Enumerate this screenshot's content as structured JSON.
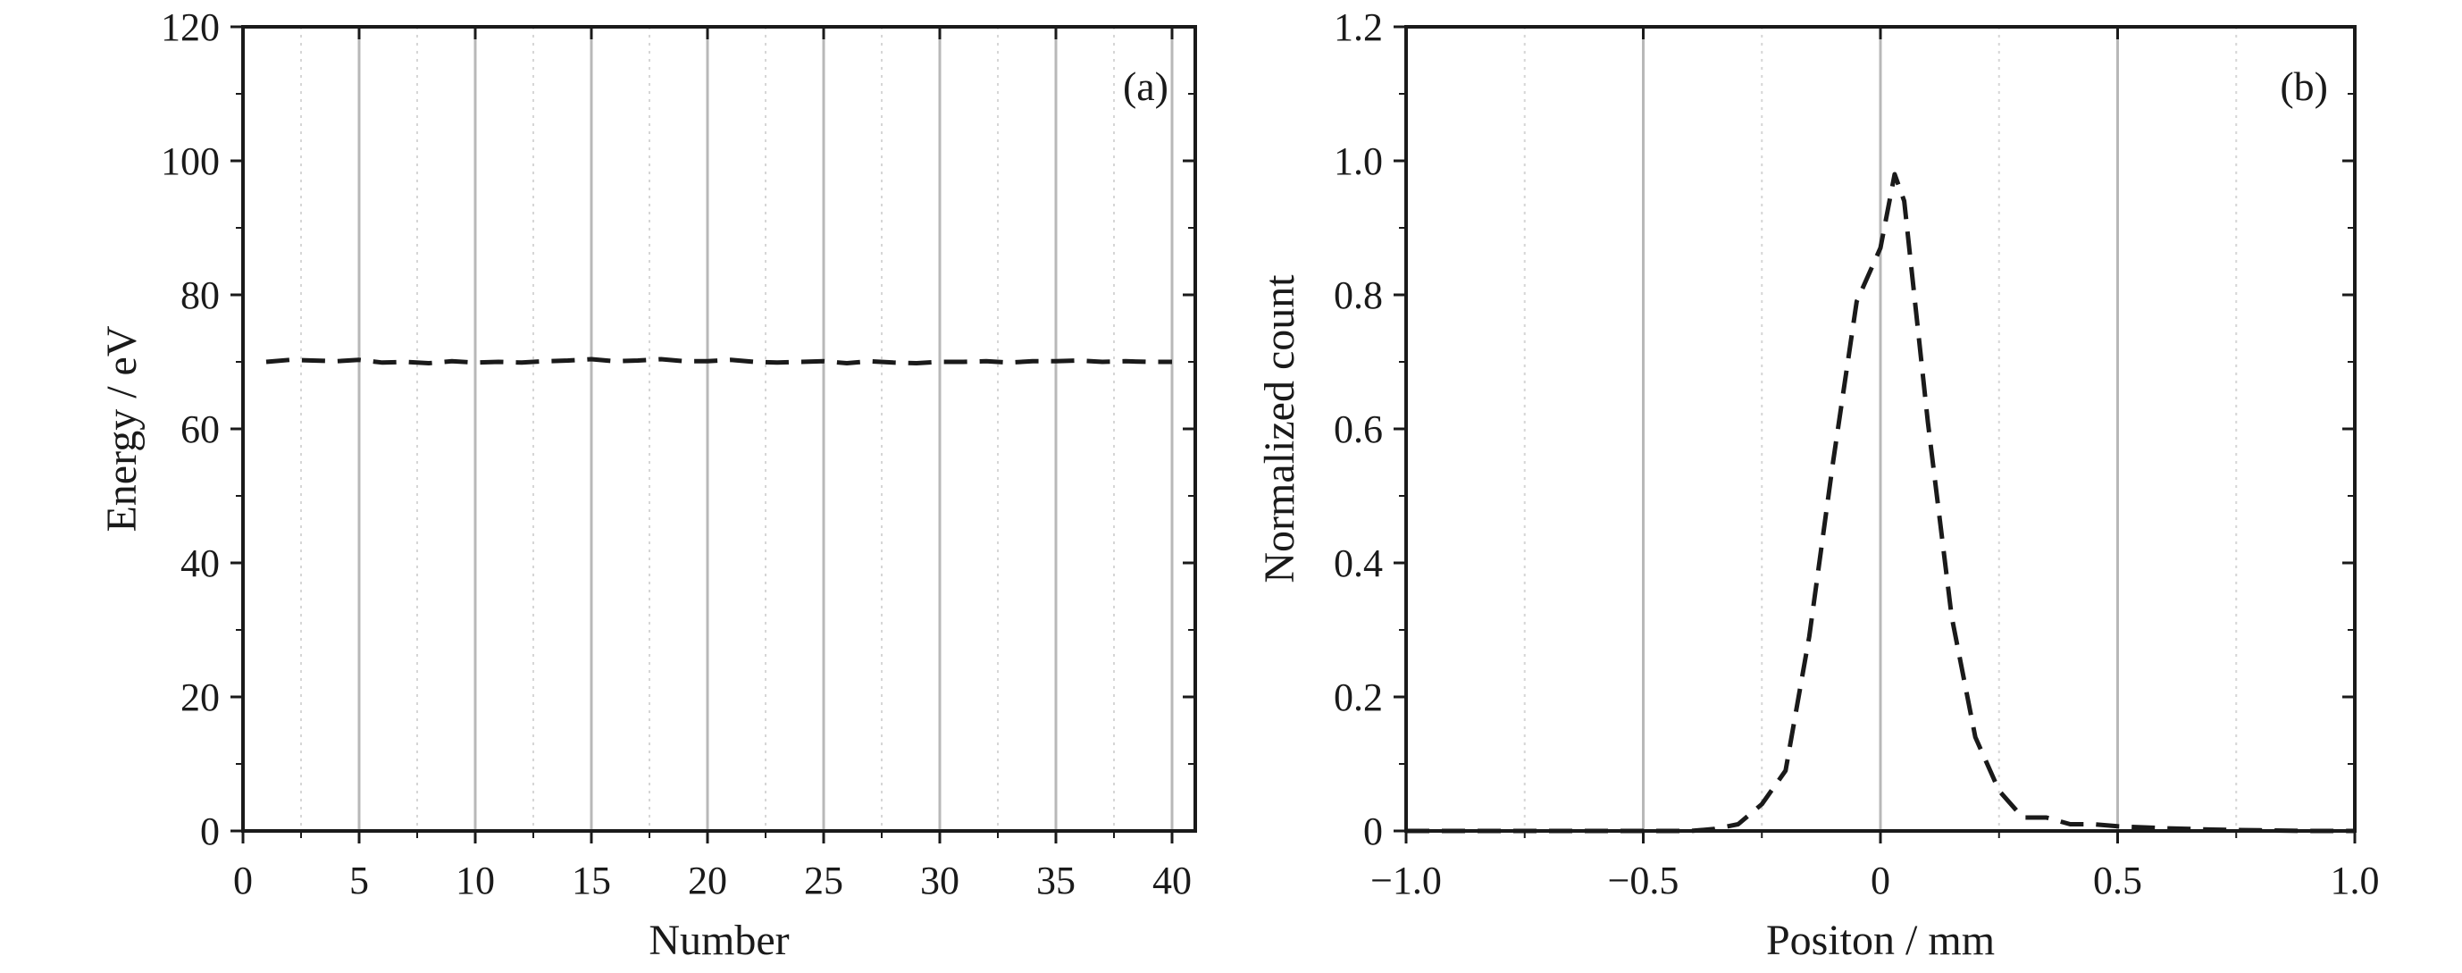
{
  "figure": {
    "panels": [
      {
        "label": "(a)"
      },
      {
        "label": "(b)"
      }
    ]
  },
  "colors": {
    "line": "#1a1a1a",
    "major_grid": "#b8b8b8",
    "minor_grid": "#d6d6d6",
    "frame": "#1a1a1a"
  },
  "chart_data": [
    {
      "type": "line",
      "panel_label": "(a)",
      "xlabel": "Number",
      "ylabel": "Energy / eV",
      "xlim": [
        0,
        41
      ],
      "ylim": [
        0,
        120
      ],
      "x_ticks": [
        0,
        5,
        10,
        15,
        20,
        25,
        30,
        35,
        40
      ],
      "x_tick_labels": [
        "0",
        "5",
        "10",
        "15",
        "20",
        "25",
        "30",
        "35",
        "40"
      ],
      "y_ticks": [
        0,
        20,
        40,
        60,
        80,
        100,
        120
      ],
      "y_tick_labels": [
        "0",
        "20",
        "40",
        "60",
        "80",
        "100",
        "120"
      ],
      "grid": "vertical",
      "line_style": "dashed",
      "series": [
        {
          "x": [
            1,
            2,
            3,
            4,
            5,
            6,
            7,
            8,
            9,
            10,
            11,
            12,
            13,
            14,
            15,
            16,
            17,
            18,
            19,
            20,
            21,
            22,
            23,
            24,
            25,
            26,
            27,
            28,
            29,
            30,
            31,
            32,
            33,
            34,
            35,
            36,
            37,
            38,
            39,
            40
          ],
          "y": [
            70.0,
            70.3,
            70.2,
            70.1,
            70.3,
            69.9,
            70.0,
            69.8,
            70.1,
            69.9,
            70.0,
            69.9,
            70.1,
            70.2,
            70.4,
            70.1,
            70.2,
            70.4,
            70.1,
            70.1,
            70.3,
            70.0,
            69.9,
            70.0,
            70.1,
            69.8,
            70.1,
            69.9,
            69.8,
            70.0,
            70.0,
            70.1,
            69.9,
            70.1,
            70.1,
            70.2,
            70.0,
            70.1,
            70.0,
            70.0
          ]
        }
      ]
    },
    {
      "type": "line",
      "panel_label": "(b)",
      "xlabel": "Positon / mm",
      "ylabel": "Normalized count",
      "xlim": [
        -1.0,
        1.0
      ],
      "ylim": [
        0,
        1.2
      ],
      "x_ticks": [
        -1.0,
        -0.5,
        0,
        0.5,
        1.0
      ],
      "x_tick_labels": [
        "−1.0",
        "−0.5",
        "0",
        "0.5",
        "1.0"
      ],
      "y_ticks": [
        0,
        0.2,
        0.4,
        0.6,
        0.8,
        1.0,
        1.2
      ],
      "y_tick_labels": [
        "0",
        "0.2",
        "0.4",
        "0.6",
        "0.8",
        "1.0",
        "1.2"
      ],
      "grid": "vertical",
      "line_style": "dashed",
      "series": [
        {
          "x": [
            -1.0,
            -0.8,
            -0.6,
            -0.5,
            -0.4,
            -0.35,
            -0.3,
            -0.25,
            -0.2,
            -0.15,
            -0.1,
            -0.05,
            0.0,
            0.03,
            0.05,
            0.1,
            0.15,
            0.2,
            0.25,
            0.3,
            0.35,
            0.4,
            0.45,
            0.5,
            0.6,
            0.7,
            0.8,
            0.9,
            1.0
          ],
          "y": [
            0.0,
            0.0,
            0.0,
            0.0,
            0.0,
            0.003,
            0.01,
            0.04,
            0.09,
            0.29,
            0.55,
            0.79,
            0.87,
            0.98,
            0.94,
            0.61,
            0.32,
            0.14,
            0.06,
            0.02,
            0.02,
            0.01,
            0.01,
            0.007,
            0.004,
            0.002,
            0.001,
            0.0,
            0.0
          ]
        }
      ]
    }
  ]
}
